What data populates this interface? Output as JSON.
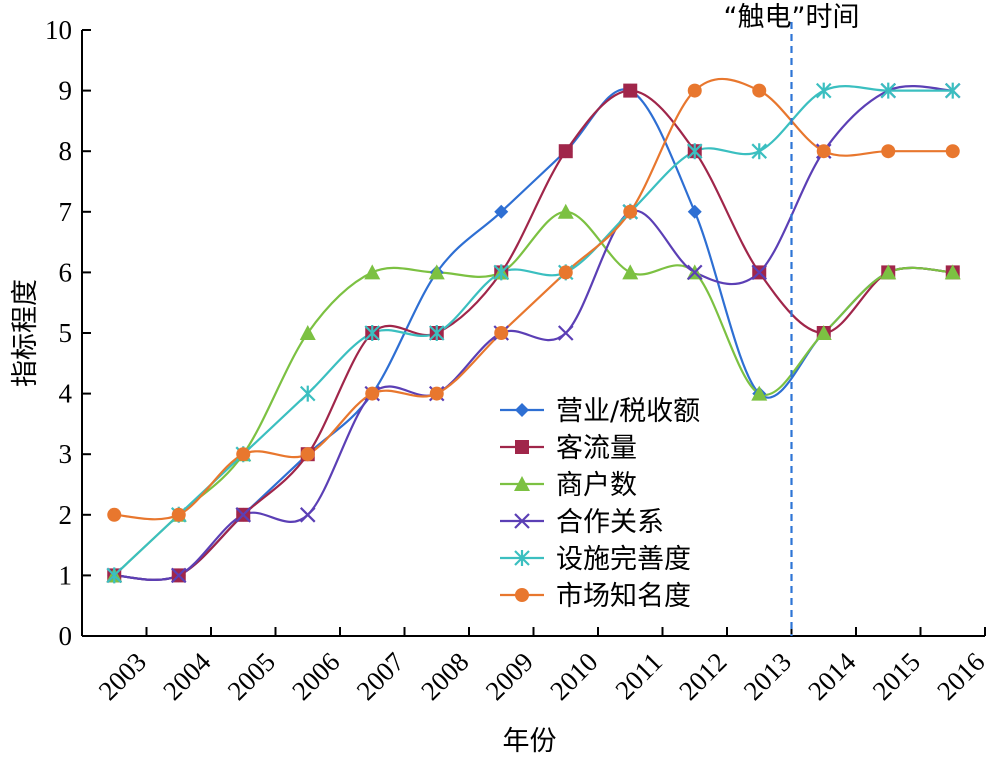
{
  "chart_data": {
    "type": "line",
    "title": "",
    "xlabel": "年份",
    "ylabel": "指标程度",
    "categories": [
      "2003",
      "2004",
      "2005",
      "2006",
      "2007",
      "2008",
      "2009",
      "2010",
      "2011",
      "2012",
      "2013",
      "2014",
      "2015",
      "2016"
    ],
    "ylim": [
      0,
      10
    ],
    "yticks": [
      "0",
      "1",
      "2",
      "3",
      "4",
      "5",
      "6",
      "7",
      "8",
      "9",
      "10"
    ],
    "grid": false,
    "legend_position": "center-right",
    "annotation": {
      "label": "“触电”时间",
      "x": "2013",
      "style": "dashed-vertical-line",
      "color": "#2e75d6"
    },
    "series": [
      {
        "name": "营业/税收额",
        "color": "#2e6fd3",
        "marker": "diamond",
        "values": [
          1,
          1,
          2,
          3,
          4,
          6,
          7,
          8,
          9,
          7,
          4,
          5,
          6,
          6
        ]
      },
      {
        "name": "客流量",
        "color": "#a0264a",
        "marker": "square",
        "values": [
          1,
          1,
          2,
          3,
          5,
          5,
          6,
          8,
          9,
          8,
          6,
          5,
          6,
          6
        ]
      },
      {
        "name": "商户数",
        "color": "#7cc142",
        "marker": "triangle",
        "values": [
          1,
          2,
          3,
          5,
          6,
          6,
          6,
          7,
          6,
          6,
          4,
          5,
          6,
          6
        ]
      },
      {
        "name": "合作关系",
        "color": "#5b3fb5",
        "marker": "x",
        "values": [
          1,
          1,
          2,
          2,
          4,
          4,
          5,
          5,
          7,
          6,
          6,
          8,
          9,
          9
        ]
      },
      {
        "name": "设施完善度",
        "color": "#3bbfc0",
        "marker": "star",
        "values": [
          1,
          2,
          3,
          4,
          5,
          5,
          6,
          6,
          7,
          8,
          8,
          9,
          9,
          9
        ]
      },
      {
        "name": "市场知名度",
        "color": "#e8772e",
        "marker": "circle",
        "values": [
          2,
          2,
          3,
          3,
          4,
          4,
          5,
          6,
          7,
          9,
          9,
          8,
          8,
          8
        ]
      }
    ]
  }
}
